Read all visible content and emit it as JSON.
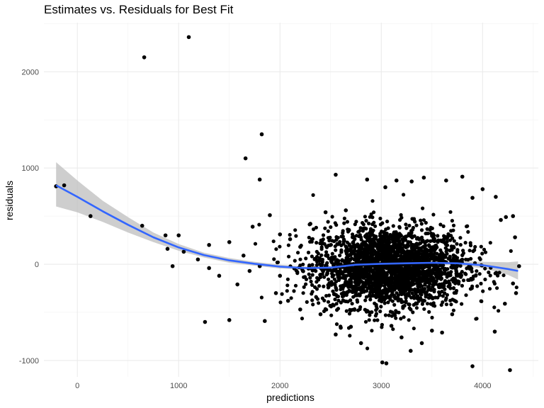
{
  "chart_data": {
    "type": "scatter",
    "title": "Estimates vs. Residuals for Best Fit",
    "xlabel": "predictions",
    "ylabel": "residuals",
    "xlim": [
      -330,
      4550
    ],
    "ylim": [
      -1170,
      2510
    ],
    "x_ticks": [
      0,
      1000,
      2000,
      3000,
      4000
    ],
    "y_ticks": [
      -1000,
      0,
      1000,
      2000
    ],
    "x_tick_labels": [
      "0",
      "1000",
      "2000",
      "3000",
      "4000"
    ],
    "y_tick_labels": [
      "-1000",
      "0",
      "1000",
      "2000"
    ],
    "grid": true,
    "legend": "none",
    "point_color": "#000000",
    "smooth_color": "#3366ff",
    "band_color": "#bdbdbd",
    "points": [
      [
        -210,
        810
      ],
      [
        -130,
        820
      ],
      [
        130,
        500
      ],
      [
        660,
        2150
      ],
      [
        1100,
        2360
      ],
      [
        1820,
        1350
      ],
      [
        1660,
        1100
      ],
      [
        1800,
        880
      ],
      [
        640,
        400
      ],
      [
        870,
        300
      ],
      [
        1000,
        300
      ],
      [
        890,
        160
      ],
      [
        940,
        -20
      ],
      [
        1050,
        130
      ],
      [
        1190,
        50
      ],
      [
        1300,
        200
      ],
      [
        1300,
        -40
      ],
      [
        1260,
        -600
      ],
      [
        1500,
        -580
      ],
      [
        1850,
        -590
      ],
      [
        1900,
        510
      ],
      [
        2550,
        930
      ],
      [
        1500,
        230
      ],
      [
        1640,
        90
      ],
      [
        1730,
        390
      ],
      [
        2000,
        310
      ],
      [
        2100,
        260
      ],
      [
        2200,
        180
      ],
      [
        2300,
        420
      ],
      [
        2450,
        540
      ],
      [
        2650,
        560
      ],
      [
        2860,
        880
      ],
      [
        3040,
        800
      ],
      [
        3150,
        870
      ],
      [
        3300,
        860
      ],
      [
        3420,
        900
      ],
      [
        3640,
        870
      ],
      [
        3800,
        910
      ],
      [
        4000,
        780
      ],
      [
        3900,
        690
      ],
      [
        4130,
        700
      ],
      [
        4180,
        460
      ],
      [
        4230,
        490
      ],
      [
        4300,
        500
      ],
      [
        4320,
        280
      ],
      [
        4360,
        -20
      ],
      [
        4300,
        -200
      ],
      [
        4330,
        -300
      ],
      [
        4220,
        -410
      ],
      [
        4120,
        -700
      ],
      [
        3900,
        -1060
      ],
      [
        4270,
        -1100
      ],
      [
        3010,
        -1020
      ],
      [
        3050,
        -1030
      ],
      [
        3290,
        -900
      ],
      [
        2800,
        -820
      ],
      [
        2600,
        -660
      ],
      [
        2400,
        -520
      ],
      [
        2200,
        -470
      ],
      [
        2080,
        -380
      ],
      [
        1960,
        -300
      ],
      [
        1400,
        -120
      ],
      [
        1580,
        -210
      ],
      [
        1700,
        -70
      ],
      [
        1800,
        -20
      ],
      [
        2000,
        -120
      ],
      [
        3600,
        -710
      ],
      [
        3700,
        -520
      ],
      [
        2550,
        -730
      ],
      [
        2700,
        -650
      ],
      [
        3200,
        -760
      ],
      [
        3100,
        -640
      ],
      [
        3400,
        -820
      ],
      [
        3500,
        -690
      ]
    ],
    "cluster": {
      "x_center": 3080,
      "y_center": -30,
      "x_spread": 380,
      "y_spread": 210,
      "count": 2600
    },
    "smooth": {
      "x": [
        -210,
        0,
        250,
        500,
        750,
        1000,
        1250,
        1500,
        1750,
        2000,
        2250,
        2500,
        2750,
        3000,
        3250,
        3500,
        3750,
        4000,
        4250,
        4350
      ],
      "y": [
        820,
        700,
        550,
        410,
        280,
        175,
        95,
        40,
        5,
        -25,
        -40,
        -35,
        -5,
        5,
        10,
        15,
        10,
        -10,
        -50,
        -70
      ],
      "lower": [
        600,
        540,
        440,
        330,
        230,
        140,
        70,
        15,
        -15,
        -45,
        -55,
        -50,
        -20,
        -5,
        0,
        -5,
        -15,
        -40,
        -110,
        -160
      ],
      "upper": [
        1060,
        870,
        660,
        490,
        330,
        210,
        120,
        65,
        25,
        -5,
        -25,
        -20,
        10,
        15,
        20,
        35,
        35,
        25,
        20,
        30
      ]
    }
  }
}
